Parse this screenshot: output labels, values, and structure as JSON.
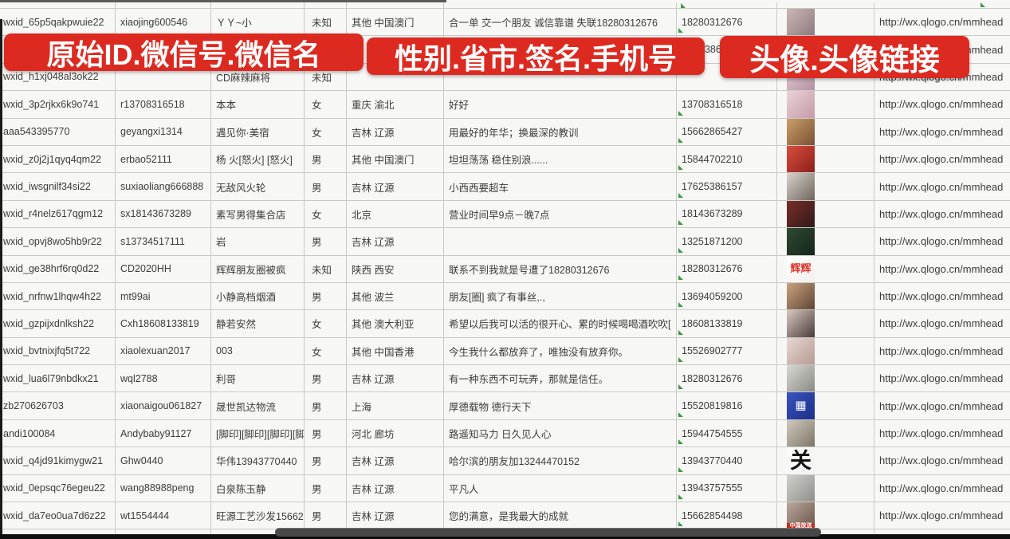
{
  "banners": [
    {
      "label": "原始ID.微信号.微信名"
    },
    {
      "label": "性别.省市.签名.手机号"
    },
    {
      "label": "头像.头像链接"
    }
  ],
  "accent_colors": {
    "banner_red": "#dd2a21",
    "banner_text": "#ffffff",
    "error_mark_green": "#3a9a3e"
  },
  "table": {
    "columns": [
      "原始ID",
      "微信号",
      "微信名",
      "性别",
      "省市",
      "签名",
      "手机号",
      "头像",
      "头像链接"
    ],
    "rows": [
      {
        "id": "wxid_65p5qakpwuie22",
        "account": "xiaojing600546",
        "name": "ＹＹ~小",
        "gender": "未知",
        "region": "其他 中国澳门",
        "signature": "合一单 交一个朋友 诚信靠谱 失联18280312676",
        "phone": "18280312676",
        "link": "http://wx.qlogo.cn/mmhead",
        "avatar": {
          "label": "photo",
          "c1": "#cbb7b4",
          "c2": "#8f7a82"
        }
      },
      {
        "id": "",
        "account": "",
        "name": "",
        "gender": "",
        "region": "",
        "signature": "",
        "phone": "5386",
        "phone_pad": 28,
        "link": "http://wx.qlogo.cn/mmhead",
        "avatar": {
          "label": "photo",
          "c1": "#cfd4de",
          "c2": "#9aa2b5"
        }
      },
      {
        "id": "wxid_h1xj048al3ok22",
        "account": "",
        "name": "CD麻辣麻将",
        "gender": "未知",
        "region": "",
        "signature": "",
        "phone": "",
        "link": "http://wx.qlogo.cn/mmhead",
        "avatar": {
          "label": "photo",
          "c1": "#e3cdd2",
          "c2": "#b291a1"
        }
      },
      {
        "id": "wxid_3p2rjkx6k9o741",
        "account": "r13708316518",
        "name": "本本",
        "gender": "女",
        "region": "重庆 渝北",
        "signature": "好好",
        "phone": "13708316518",
        "link": "http://wx.qlogo.cn/mmhead",
        "avatar": {
          "label": "photo",
          "c1": "#e8d3d8",
          "c2": "#c59aa8"
        }
      },
      {
        "id": "aaa543395770",
        "account": "geyangxi1314",
        "name": "遇见你·美宿",
        "gender": "女",
        "region": "吉林 辽源",
        "signature": "用最好的年华；换最深的教训",
        "phone": "15662865427",
        "link": "http://wx.qlogo.cn/mmhead",
        "avatar": {
          "label": "photo",
          "c1": "#caa06a",
          "c2": "#7a4f33"
        }
      },
      {
        "id": "wxid_z0j2j1qyq4qm22",
        "account": "erbao52111",
        "name": "杨 火[怒火] [怒火]",
        "gender": "男",
        "region": "其他 中国澳门",
        "signature": "坦坦荡荡 稳住别浪......",
        "phone": "15844702210",
        "link": "http://wx.qlogo.cn/mmhead",
        "avatar": {
          "label": "photo",
          "c1": "#d94f3c",
          "c2": "#8c1f1a"
        }
      },
      {
        "id": "wxid_iwsgnilf34si22",
        "account": "suxiaoliang666888",
        "name": "无敌风火轮",
        "gender": "男",
        "region": "吉林 辽源",
        "signature": "小西西要超车",
        "phone": "17625386157",
        "link": "http://wx.qlogo.cn/mmhead",
        "avatar": {
          "label": "photo",
          "c1": "#d8d3cc",
          "c2": "#6f655c"
        }
      },
      {
        "id": "wxid_r4nelz617qgm12",
        "account": "sx18143673289",
        "name": "素写男得集合店",
        "gender": "女",
        "region": "北京",
        "signature": "营业时间早9点－晚7点",
        "phone": "18143673289",
        "link": "http://wx.qlogo.cn/mmhead",
        "avatar": {
          "label": "photo",
          "c1": "#7a2e28",
          "c2": "#2e1a1a"
        }
      },
      {
        "id": "wxid_opvj8wo5hb9r22",
        "account": "s13734517111",
        "name": "岩",
        "gender": "男",
        "region": "吉林 辽源",
        "signature": "",
        "phone": "13251871200",
        "link": "http://wx.qlogo.cn/mmhead",
        "avatar": {
          "label": "photo",
          "c1": "#2f4a35",
          "c2": "#15251a"
        }
      },
      {
        "id": "wxid_ge38hrf6rq0d22",
        "account": "CD2020HH",
        "name": "辉辉朋友圈被疯",
        "gender": "未知",
        "region": "陕西 西安",
        "signature": "联系不到我就是号遭了18280312676",
        "phone": "18280312676",
        "link": "http://wx.qlogo.cn/mmhead",
        "avatar": {
          "label": "text-logo",
          "c1": "#ffffff",
          "c2": "#f2efec",
          "text": "辉辉",
          "tc": "#e0342b",
          "fs": 13
        }
      },
      {
        "id": "wxid_nrfnw1lhqw4h22",
        "account": "mt99ai",
        "name": "小静高档烟酒",
        "gender": "男",
        "region": "其他 波兰",
        "signature": "朋友[圈] 疯了有事丝,.,",
        "phone": "13694059200",
        "link": "http://wx.qlogo.cn/mmhead",
        "avatar": {
          "label": "photo",
          "c1": "#caa37c",
          "c2": "#5e4436"
        }
      },
      {
        "id": "wxid_gzpijxdnlksh22",
        "account": "Cxh18608133819",
        "name": "静若安然",
        "gender": "女",
        "region": "其他 澳大利亚",
        "signature": "希望以后我可以活的很开心、累的时候喝喝酒吹吹[",
        "phone": "18608133819",
        "link": "http://wx.qlogo.cn/mmhead",
        "avatar": {
          "label": "photo",
          "c1": "#d9c8c2",
          "c2": "#4a3a38"
        }
      },
      {
        "id": "wxid_bvtnixjfq5t722",
        "account": "xiaolexuan2017",
        "name": "003",
        "gender": "女",
        "region": "其他 中国香港",
        "signature": "今生我什么都放弃了，唯独没有放弃你。",
        "phone": "15526902777",
        "link": "http://wx.qlogo.cn/mmhead",
        "avatar": {
          "label": "photo",
          "c1": "#e8d8d2",
          "c2": "#b59a92"
        }
      },
      {
        "id": "wxid_lua6l79nbdkx21",
        "account": "wql2788",
        "name": "利哥",
        "gender": "男",
        "region": "吉林 辽源",
        "signature": "有一种东西不可玩弄，那就是信任。",
        "phone": "18280312676",
        "link": "http://wx.qlogo.cn/mmhead",
        "avatar": {
          "label": "photo",
          "c1": "#d8d8d4",
          "c2": "#8a8a84"
        }
      },
      {
        "id": "zb270626703",
        "account": "xiaonaigou061827",
        "name": "晟世凯达物流",
        "gender": "男",
        "region": "上海",
        "signature": "厚德载物 德行天下",
        "phone": "15520819816",
        "link": "http://wx.qlogo.cn/mmhead",
        "avatar": {
          "label": "qr-code",
          "c1": "#3a55c0",
          "c2": "#1b2f86",
          "text": "▦",
          "tc": "#ffffff",
          "fs": 15
        }
      },
      {
        "id": "andi100084",
        "account": "Andybaby91127",
        "name": "[脚印][脚印][脚印][脚印",
        "gender": "男",
        "region": "河北 廊坊",
        "signature": "路遥知马力 日久见人心",
        "phone": "15944754555",
        "link": "http://wx.qlogo.cn/mmhead",
        "avatar": {
          "label": "photo",
          "c1": "#cfc9bd",
          "c2": "#7d7668"
        }
      },
      {
        "id": "wxid_q4jd91kimygw21",
        "account": "Ghw0440",
        "name": "华伟13943770440",
        "gender": "男",
        "region": "吉林 辽源",
        "signature": "哈尔滨的朋友加13244470152",
        "phone": "13943770440",
        "link": "http://wx.qlogo.cn/mmhead",
        "avatar": {
          "label": "calligraphy",
          "c1": "#fbfbfa",
          "c2": "#f2f2f0",
          "text": "关",
          "tc": "#141414",
          "fs": 27
        }
      },
      {
        "id": "wxid_0epsqc76egeu22",
        "account": "wang88988peng",
        "name": "白泉陈玉静",
        "gender": "男",
        "region": "吉林 辽源",
        "signature": "平凡人",
        "phone": "13943757555",
        "link": "http://wx.qlogo.cn/mmhead",
        "avatar": {
          "label": "photo",
          "c1": "#d0d0cc",
          "c2": "#8f8f89"
        }
      },
      {
        "id": "wxid_da7eo0ua7d6z22",
        "account": "wt1554444",
        "name": "旺源工艺沙发15662854",
        "gender": "男",
        "region": "吉林 辽源",
        "signature": "您的满意，是我最大的成就",
        "phone": "15662854498",
        "link": "http://wx.qlogo.cn/mmhead",
        "avatar": {
          "label": "photo-red-strip",
          "c1": "#b9a99e",
          "c2": "#6b5348",
          "text": "中国放送",
          "tc": "#ffffff",
          "fs": 7,
          "strip": "#c62c1f"
        }
      },
      {
        "id": "",
        "account": "",
        "name": "",
        "gender": "",
        "region": "",
        "signature": "",
        "phone": "",
        "link": "",
        "avatar": {
          "label": "photo",
          "c1": "#c4beb6",
          "c2": "#8b97a8"
        }
      }
    ]
  }
}
